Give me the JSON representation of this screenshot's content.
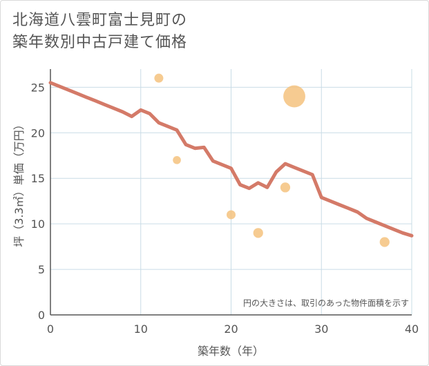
{
  "title": {
    "line1": "北海道八雲町富士見町の",
    "line2": "築年数別中古戸建て価格"
  },
  "colors": {
    "line": "#d47a68",
    "bubble": "#f5c27e",
    "grid": "#c9dce6",
    "axis": "#555555"
  },
  "chart_data": {
    "type": "scatter",
    "xlabel": "築年数（年）",
    "ylabel": "坪（3.3㎡）単価（万円）",
    "xlim": [
      0,
      40
    ],
    "ylim": [
      0,
      27
    ],
    "xticks": [
      0,
      10,
      20,
      30,
      40
    ],
    "yticks": [
      0,
      5,
      10,
      15,
      20,
      25
    ],
    "grid": true,
    "note": "円の大きさは、取引のあった物件面積を示す",
    "series": [
      {
        "kind": "line",
        "x": [
          0,
          1,
          2,
          3,
          4,
          5,
          6,
          7,
          8,
          9,
          10,
          11,
          12,
          13,
          14,
          15,
          16,
          17,
          18,
          19,
          20,
          21,
          22,
          23,
          24,
          25,
          26,
          27,
          28,
          29,
          30,
          31,
          32,
          33,
          34,
          35,
          36,
          37,
          38,
          39,
          40
        ],
        "y": [
          25.5,
          25.1,
          24.7,
          24.3,
          23.9,
          23.5,
          23.1,
          22.7,
          22.3,
          21.8,
          22.5,
          22.1,
          21.1,
          20.7,
          20.3,
          18.7,
          18.3,
          18.4,
          16.9,
          16.5,
          16.1,
          14.3,
          13.9,
          14.5,
          14.0,
          15.7,
          16.6,
          16.2,
          15.8,
          15.4,
          12.9,
          12.5,
          12.1,
          11.7,
          11.3,
          10.6,
          10.2,
          9.8,
          9.4,
          9.0,
          8.7
        ]
      },
      {
        "kind": "bubble",
        "points": [
          {
            "x": 12,
            "y": 26,
            "size": 1
          },
          {
            "x": 14,
            "y": 17,
            "size": 0.8
          },
          {
            "x": 20,
            "y": 11,
            "size": 1
          },
          {
            "x": 23,
            "y": 9,
            "size": 1.2
          },
          {
            "x": 26,
            "y": 14,
            "size": 1.2
          },
          {
            "x": 27,
            "y": 24,
            "size": 6
          },
          {
            "x": 37,
            "y": 8,
            "size": 1.2
          }
        ]
      }
    ]
  }
}
